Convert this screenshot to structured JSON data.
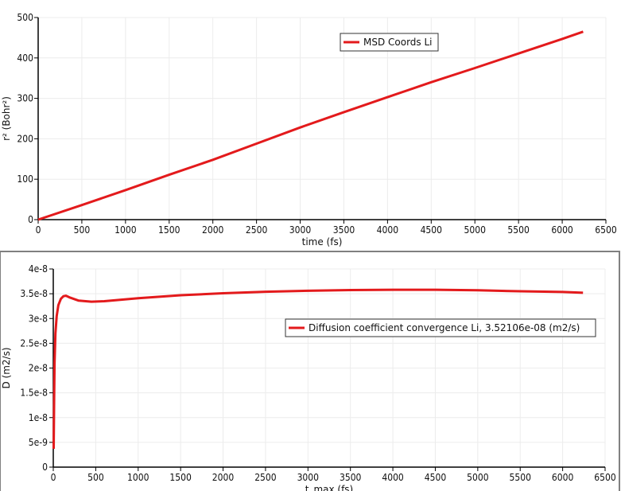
{
  "colors": {
    "series": "#e31a1c",
    "grid": "#ececec",
    "axis": "#000000",
    "panel_border": "#808080"
  },
  "chart_data": [
    {
      "type": "line",
      "title": "",
      "xlabel": "time (fs)",
      "ylabel": "r² (Bohr²)",
      "xlim": [
        0,
        6500
      ],
      "ylim": [
        0,
        500
      ],
      "xticks": [
        "0",
        "500",
        "1000",
        "1500",
        "2000",
        "2500",
        "3000",
        "3500",
        "4000",
        "4500",
        "5000",
        "5500",
        "6000",
        "6500"
      ],
      "yticks": [
        "0",
        "100",
        "200",
        "300",
        "400",
        "500"
      ],
      "grid": true,
      "legend_position": "top-right",
      "series": [
        {
          "name": "MSD Coords Li",
          "x": [
            0,
            500,
            1000,
            1500,
            2000,
            2500,
            3000,
            3500,
            4000,
            4500,
            5000,
            5500,
            6000,
            6240
          ],
          "y": [
            0,
            36,
            73,
            111,
            148,
            188,
            228,
            266,
            303,
            340,
            375,
            411,
            447,
            465
          ]
        }
      ]
    },
    {
      "type": "line",
      "title": "",
      "xlabel": "t_max (fs)",
      "ylabel": "D (m2/s)",
      "xlim": [
        0,
        6500
      ],
      "ylim": [
        0,
        4e-08
      ],
      "xticks": [
        "0",
        "500",
        "1000",
        "1500",
        "2000",
        "2500",
        "3000",
        "3500",
        "4000",
        "4500",
        "5000",
        "5500",
        "6000",
        "6500"
      ],
      "yticks": [
        "0",
        "5e-9",
        "1e-8",
        "1.5e-8",
        "2e-8",
        "2.5e-8",
        "3e-8",
        "3.5e-8",
        "4e-8"
      ],
      "grid": true,
      "legend_position": "right",
      "series": [
        {
          "name": "Diffusion coefficient convergence Li, 3.52106e-08 (m2/s)",
          "x": [
            5,
            10,
            15,
            25,
            40,
            60,
            90,
            120,
            150,
            200,
            300,
            450,
            600,
            1000,
            1500,
            2000,
            2500,
            3000,
            3500,
            4000,
            4500,
            5000,
            5500,
            6000,
            6240
          ],
          "y": [
            3.7e-09,
            1.4e-08,
            2.1e-08,
            2.7e-08,
            3.05e-08,
            3.27e-08,
            3.4e-08,
            3.45e-08,
            3.46e-08,
            3.42e-08,
            3.36e-08,
            3.34e-08,
            3.35e-08,
            3.41e-08,
            3.47e-08,
            3.51e-08,
            3.54e-08,
            3.56e-08,
            3.575e-08,
            3.58e-08,
            3.58e-08,
            3.57e-08,
            3.55e-08,
            3.535e-08,
            3.52e-08
          ]
        }
      ]
    }
  ]
}
